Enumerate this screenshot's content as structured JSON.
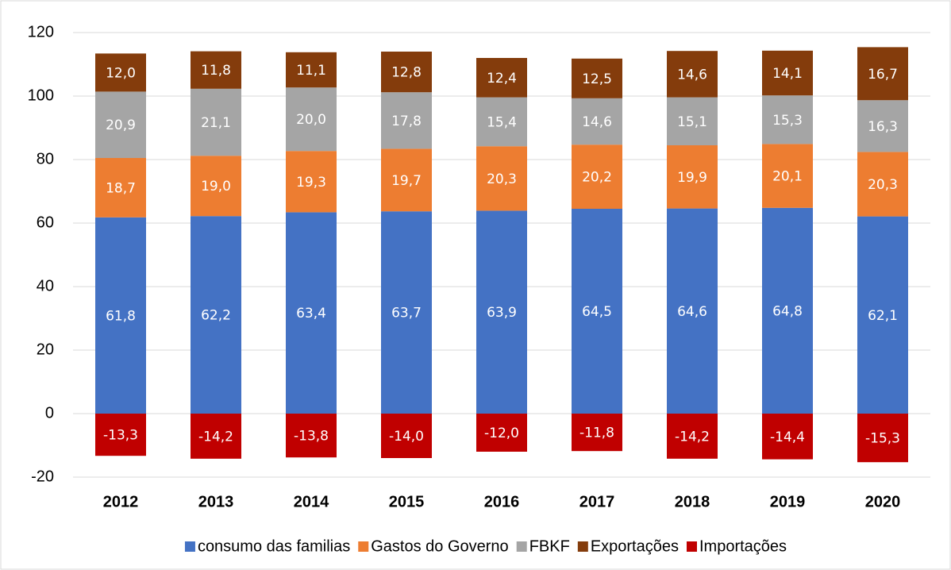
{
  "chart_data": {
    "type": "stacked_bar",
    "categories": [
      "2012",
      "2013",
      "2014",
      "2015",
      "2016",
      "2017",
      "2018",
      "2019",
      "2020"
    ],
    "series": [
      {
        "name": "consumo das familias",
        "color": "#4472C4",
        "values": [
          61.8,
          62.2,
          63.4,
          63.7,
          63.9,
          64.5,
          64.6,
          64.8,
          62.1
        ],
        "value_labels": [
          "61,8",
          "62,2",
          "63,4",
          "63,7",
          "63,9",
          "64,5",
          "64,6",
          "64,8",
          "62,1"
        ]
      },
      {
        "name": "Gastos do Governo",
        "color": "#ED7D31",
        "values": [
          18.7,
          19.0,
          19.3,
          19.7,
          20.3,
          20.2,
          19.9,
          20.1,
          20.3
        ],
        "value_labels": [
          "18,7",
          "19,0",
          "19,3",
          "19,7",
          "20,3",
          "20,2",
          "19,9",
          "20,1",
          "20,3"
        ]
      },
      {
        "name": "FBKF",
        "color": "#A5A5A5",
        "values": [
          20.9,
          21.1,
          20.0,
          17.8,
          15.4,
          14.6,
          15.1,
          15.3,
          16.3
        ],
        "value_labels": [
          "20,9",
          "21,1",
          "20,0",
          "17,8",
          "15,4",
          "14,6",
          "15,1",
          "15,3",
          "16,3"
        ]
      },
      {
        "name": "Exportações",
        "color": "#843C0C",
        "values": [
          12.0,
          11.8,
          11.1,
          12.8,
          12.4,
          12.5,
          14.6,
          14.1,
          16.7
        ],
        "value_labels": [
          "12,0",
          "11,8",
          "11,1",
          "12,8",
          "12,4",
          "12,5",
          "14,6",
          "14,1",
          "16,7"
        ]
      },
      {
        "name": "Importações",
        "color": "#C00000",
        "values": [
          -13.3,
          -14.2,
          -13.8,
          -14.0,
          -12.0,
          -11.8,
          -14.2,
          -14.4,
          -15.3
        ],
        "value_labels": [
          "-13,3",
          "-14,2",
          "-13,8",
          "-14,0",
          "-12,0",
          "-11,8",
          "-14,2",
          "-14,4",
          "-15,3"
        ]
      }
    ],
    "ylim": [
      -20,
      120
    ],
    "yticks": [
      -20,
      0,
      20,
      40,
      60,
      80,
      100,
      120
    ],
    "grid": true,
    "legend": "bottom"
  }
}
